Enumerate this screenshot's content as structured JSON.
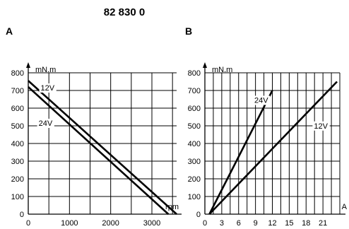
{
  "figure": {
    "title": "82 830 0"
  },
  "chart_data": [
    {
      "type": "line",
      "panel_label": "A",
      "ylabel": "mN.m",
      "xlabel": "rpm",
      "xlim": [
        0,
        3600
      ],
      "ylim": [
        0,
        800
      ],
      "x_ticks": [
        0,
        1000,
        2000,
        3000
      ],
      "y_ticks": [
        0,
        100,
        200,
        300,
        400,
        500,
        600,
        700,
        800
      ],
      "x_grid_step": 500,
      "y_grid_step": 100,
      "grid": true,
      "series": [
        {
          "name": "12V",
          "x": [
            0,
            3600
          ],
          "y": [
            755,
            0
          ],
          "label_at": [
            300,
            700
          ]
        },
        {
          "name": "24V",
          "x": [
            0,
            3400
          ],
          "y": [
            720,
            0
          ],
          "label_at": [
            250,
            500
          ]
        }
      ]
    },
    {
      "type": "line",
      "panel_label": "B",
      "ylabel": "mN.m",
      "xlabel": "A",
      "xlim": [
        0,
        24
      ],
      "ylim": [
        0,
        800
      ],
      "x_ticks": [
        0,
        3,
        6,
        9,
        12,
        15,
        18,
        21
      ],
      "y_ticks": [
        0,
        100,
        200,
        300,
        400,
        500,
        600,
        700,
        800
      ],
      "x_grid_step": 1.5,
      "y_grid_step": 100,
      "grid": true,
      "series": [
        {
          "name": "24V",
          "x": [
            0.8,
            12
          ],
          "y": [
            0,
            700
          ],
          "label_at": [
            8.8,
            630
          ]
        },
        {
          "name": "12V",
          "x": [
            0.8,
            23.5
          ],
          "y": [
            0,
            750
          ],
          "label_at": [
            19.4,
            485
          ]
        }
      ]
    }
  ]
}
